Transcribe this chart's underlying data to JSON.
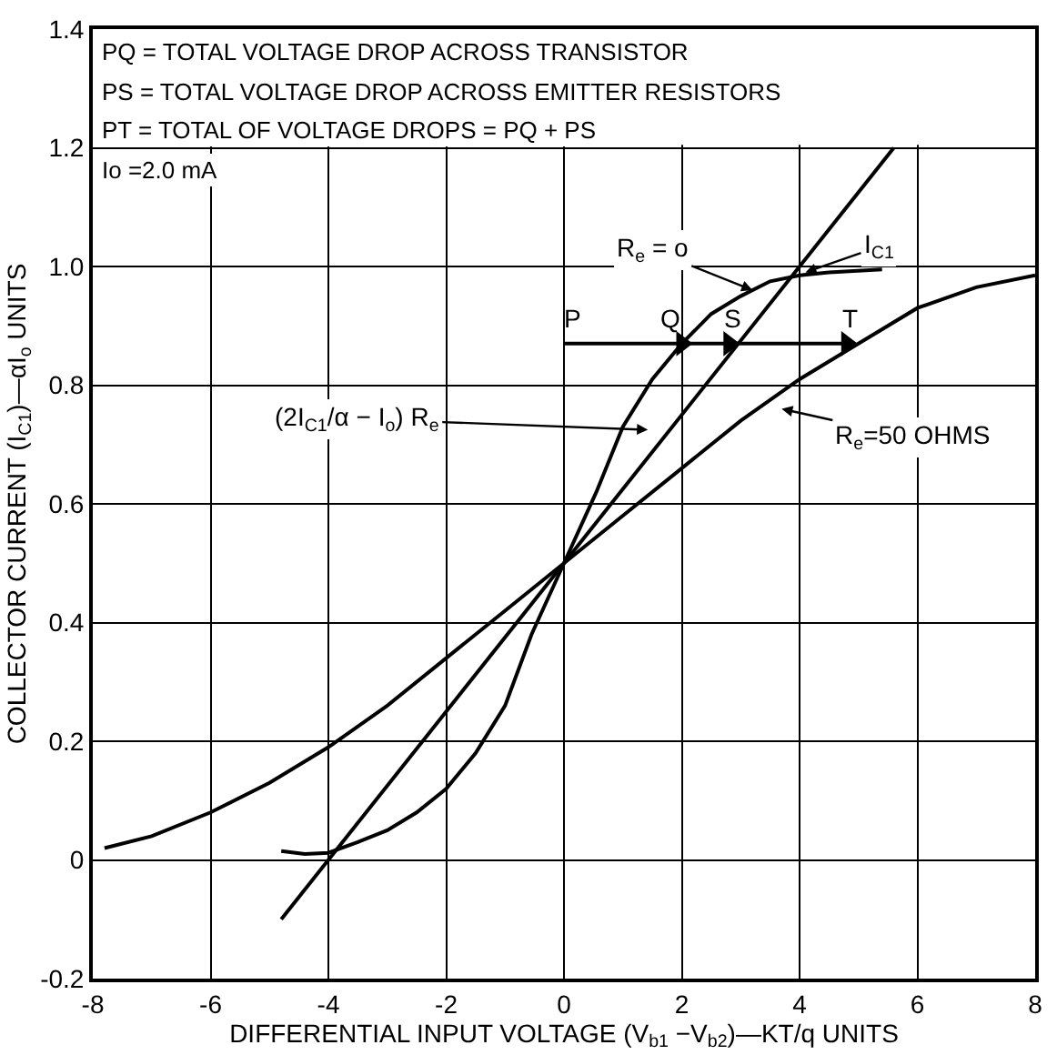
{
  "chart_data": {
    "type": "line",
    "xlabel": "DIFFERENTIAL INPUT VOLTAGE (V$_{b1}$ −V$_{b2}$)—KT/q UNITS",
    "ylabel": "COLLECTOR CURRENT (I$_{C1}$)—αI$_{o}$ UNITS",
    "xlim": [
      -8,
      8
    ],
    "ylim": [
      -0.2,
      1.4
    ],
    "xticks": [
      -8,
      -6,
      -4,
      -2,
      0,
      2,
      4,
      6,
      8
    ],
    "yticks": [
      -0.2,
      0,
      0.2,
      0.4,
      0.6,
      0.8,
      {
        "value": 1,
        "label": "1.0"
      },
      1.2,
      1.4
    ],
    "grid": true,
    "marker": "none",
    "line_style": "solid",
    "series": [
      {
        "color": "#000000",
        "x": [
          -4.8,
          -4.4,
          -4,
          -3.5,
          -3,
          -2.5,
          -2,
          -1.5,
          -1,
          -0.55,
          0,
          0.55,
          1,
          1.5,
          2,
          2.5,
          3,
          3.5,
          4,
          4.5,
          5.4
        ],
        "values": [
          0.015,
          0.01,
          0.012,
          0.03,
          0.05,
          0.08,
          0.12,
          0.18,
          0.26,
          0.38,
          0.5,
          0.62,
          0.73,
          0.81,
          0.87,
          0.92,
          0.95,
          0.975,
          0.985,
          0.99,
          0.995
        ]
      },
      {
        "color": "#000000",
        "x": [
          -4.8,
          5.6
        ],
        "values": [
          -0.1,
          1.2
        ]
      },
      {
        "color": "#000000",
        "x": [
          -7.8,
          -7,
          -6,
          -5,
          -4,
          -3,
          -2,
          -1,
          0,
          1,
          2,
          3,
          4,
          5,
          6,
          7,
          8
        ],
        "values": [
          0.02,
          0.04,
          0.08,
          0.13,
          0.19,
          0.26,
          0.34,
          0.42,
          0.5,
          0.58,
          0.66,
          0.74,
          0.81,
          0.87,
          0.93,
          0.965,
          0.985
        ]
      },
      {
        "color": "#000000",
        "x": [
          0,
          2,
          2.8,
          4.8
        ],
        "values": [
          0.87,
          0.87,
          0.87,
          0.87
        ],
        "marker": "triangle"
      }
    ],
    "annotations": [
      "PQ = TOTAL VOLTAGE DROP ACROSS TRANSISTOR",
      "PS = TOTAL VOLTAGE DROP ACROSS EMITTER RESISTORS",
      "PT = TOTAL OF VOLTAGE DROPS = PQ + PS",
      "Io =2.0 mA",
      {
        "text": "P",
        "x": 0,
        "y": 0.87
      },
      {
        "text": "Q",
        "x": 2,
        "y": 0.87
      },
      {
        "text": "S",
        "x": 2.8,
        "y": 0.87
      },
      {
        "text": "T",
        "x": 4.8,
        "y": 0.87
      },
      {
        "text": "R$_{e}$ = o",
        "x": 3.2,
        "y": 0.96
      },
      {
        "text": "I$_{C1}$",
        "x": 4.1,
        "y": 0.99
      },
      "R$_{e}$=50 OHMS",
      "(2I$_{C1}$/α − I$_{o}$) R$_{e}$"
    ]
  }
}
